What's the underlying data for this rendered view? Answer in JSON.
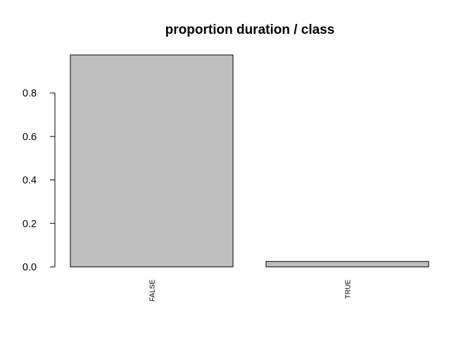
{
  "chart_data": {
    "type": "bar",
    "title": "proportion duration / class",
    "xlabel": "",
    "ylabel": "",
    "categories": [
      "FALSE",
      "TRUE"
    ],
    "values": [
      0.975,
      0.025
    ],
    "ylim": [
      0,
      0.975
    ],
    "yticks": [
      0.0,
      0.2,
      0.4,
      0.6,
      0.8
    ],
    "ytick_labels": [
      "0.0",
      "0.2",
      "0.4",
      "0.6",
      "0.8"
    ],
    "bar_color": "#bebebe",
    "grid": false,
    "legend": "none"
  }
}
